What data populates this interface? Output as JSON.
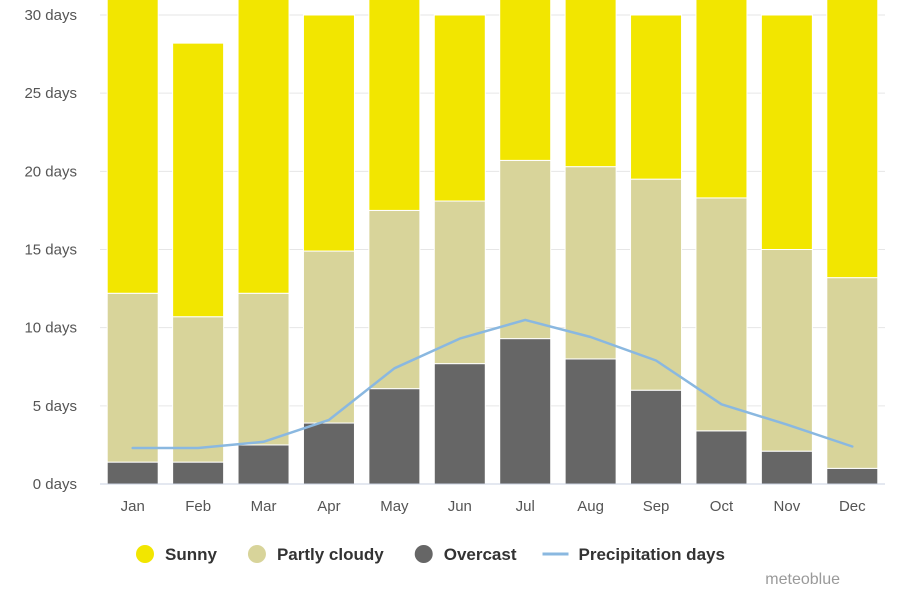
{
  "chart_data": {
    "type": "bar",
    "stacked": true,
    "categories": [
      "Jan",
      "Feb",
      "Mar",
      "Apr",
      "May",
      "Jun",
      "Jul",
      "Aug",
      "Sep",
      "Oct",
      "Nov",
      "Dec"
    ],
    "series": [
      {
        "name": "Overcast",
        "kind": "bar",
        "color": "#666666",
        "values": [
          1.4,
          1.4,
          2.5,
          3.9,
          6.1,
          7.7,
          9.3,
          8.0,
          6.0,
          3.4,
          2.1,
          1.0
        ]
      },
      {
        "name": "Partly cloudy",
        "kind": "bar",
        "color": "#d8d49a",
        "values": [
          10.8,
          9.3,
          9.7,
          11.0,
          11.4,
          10.4,
          11.4,
          12.3,
          13.5,
          14.9,
          12.9,
          12.2
        ]
      },
      {
        "name": "Sunny",
        "kind": "bar",
        "color": "#f2e600",
        "values": [
          18.8,
          17.5,
          18.8,
          15.1,
          13.5,
          11.9,
          10.3,
          10.7,
          10.5,
          12.7,
          15.0,
          17.8
        ]
      },
      {
        "name": "Precipitation days",
        "kind": "line",
        "color": "#8ab8e0",
        "values": [
          2.3,
          2.3,
          2.7,
          4.1,
          7.4,
          9.3,
          10.5,
          9.4,
          7.9,
          5.1,
          3.8,
          2.4
        ]
      }
    ],
    "y_ticks": [
      "0 days",
      "5 days",
      "10 days",
      "15 days",
      "20 days",
      "25 days",
      "30 days"
    ],
    "ylim": [
      0,
      30
    ],
    "grid": true,
    "legend_position": "bottom-center",
    "title": "",
    "xlabel": "",
    "ylabel": ""
  },
  "legend": {
    "items": [
      {
        "label": "Sunny",
        "color": "#f2e600",
        "marker": "circle"
      },
      {
        "label": "Partly cloudy",
        "color": "#d8d49a",
        "marker": "circle"
      },
      {
        "label": "Overcast",
        "color": "#666666",
        "marker": "circle"
      },
      {
        "label": "Precipitation days",
        "color": "#8ab8e0",
        "marker": "line"
      }
    ]
  },
  "branding": {
    "text": "meteoblue"
  }
}
